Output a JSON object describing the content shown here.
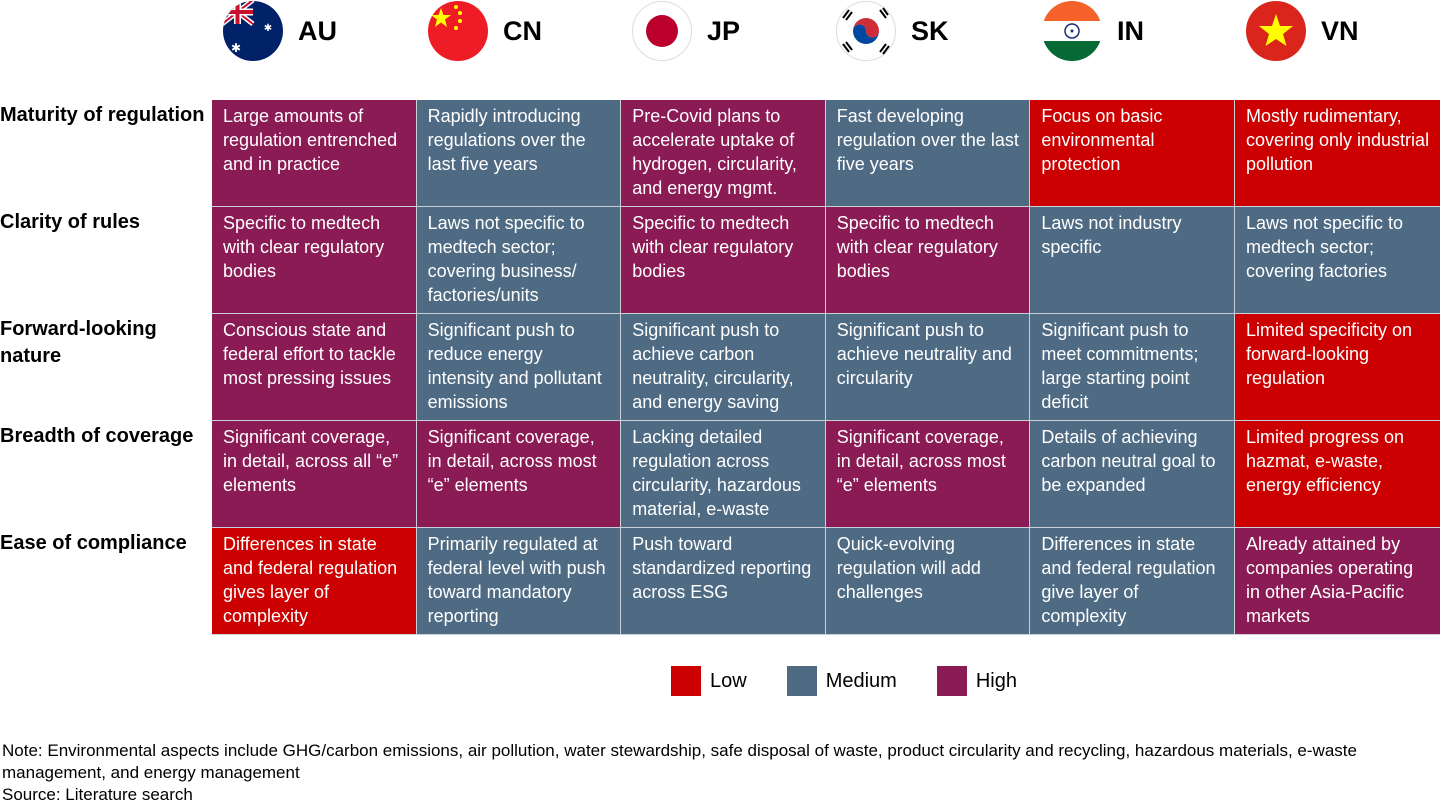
{
  "countries": [
    {
      "code": "AU",
      "flag": "australia-flag"
    },
    {
      "code": "CN",
      "flag": "china-flag"
    },
    {
      "code": "JP",
      "flag": "japan-flag"
    },
    {
      "code": "SK",
      "flag": "south-korea-flag"
    },
    {
      "code": "IN",
      "flag": "india-flag"
    },
    {
      "code": "VN",
      "flag": "vietnam-flag"
    }
  ],
  "colors": {
    "Low": "#cc0000",
    "Medium": "#4f6b84",
    "High": "#8b1b55"
  },
  "rows": [
    {
      "label": "Maturity of regulation",
      "cells": [
        {
          "level": "High",
          "text": "Large amounts of regulation entrenched and in practice"
        },
        {
          "level": "Medium",
          "text": "Rapidly introducing regulations over the last five years"
        },
        {
          "level": "High",
          "text": "Pre-Covid plans to accelerate uptake of hydrogen, circularity, and energy mgmt."
        },
        {
          "level": "Medium",
          "text": "Fast developing regulation over the last five years"
        },
        {
          "level": "Low",
          "text": "Focus on basic environmental protection"
        },
        {
          "level": "Low",
          "text": "Mostly rudimentary, covering only industrial pollution"
        }
      ]
    },
    {
      "label": "Clarity of rules",
      "cells": [
        {
          "level": "High",
          "text": "Specific to medtech with clear regulatory bodies"
        },
        {
          "level": "Medium",
          "text": "Laws not specific to medtech sector; covering business/ factories/units"
        },
        {
          "level": "High",
          "text": "Specific to medtech with clear regulatory bodies"
        },
        {
          "level": "High",
          "text": "Specific to medtech with clear regulatory bodies"
        },
        {
          "level": "Medium",
          "text": "Laws not industry specific"
        },
        {
          "level": "Medium",
          "text": "Laws not specific to medtech sector; covering factories"
        }
      ]
    },
    {
      "label": "Forward-looking nature",
      "cells": [
        {
          "level": "High",
          "text": "Conscious state and federal effort to tackle most pressing issues"
        },
        {
          "level": "Medium",
          "text": "Significant push to reduce energy intensity and pollutant emissions"
        },
        {
          "level": "Medium",
          "text": "Significant push to achieve carbon neutrality, circularity, and energy saving"
        },
        {
          "level": "Medium",
          "text": "Significant push to achieve neutrality and circularity"
        },
        {
          "level": "Medium",
          "text": "Significant push to meet commitments; large starting point deficit"
        },
        {
          "level": "Low",
          "text": "Limited specificity on forward-looking regulation"
        }
      ]
    },
    {
      "label": "Breadth of coverage",
      "cells": [
        {
          "level": "High",
          "text": "Significant coverage, in detail, across all “e” elements"
        },
        {
          "level": "High",
          "text": "Significant coverage, in detail, across most “e” elements"
        },
        {
          "level": "Medium",
          "text": "Lacking detailed regulation across circularity, hazardous material, e-waste"
        },
        {
          "level": "High",
          "text": "Significant coverage, in detail, across most “e” elements"
        },
        {
          "level": "Medium",
          "text": "Details of achieving carbon neutral goal to be expanded"
        },
        {
          "level": "Low",
          "text": "Limited progress on hazmat, e-waste, energy efficiency"
        }
      ]
    },
    {
      "label": "Ease of compliance",
      "cells": [
        {
          "level": "Low",
          "text": "Differences in state and federal regulation gives layer of complexity"
        },
        {
          "level": "Medium",
          "text": "Primarily regulated at federal level with push toward mandatory reporting"
        },
        {
          "level": "Medium",
          "text": "Push toward standardized reporting across ESG"
        },
        {
          "level": "Medium",
          "text": "Quick-evolving regulation will add challenges"
        },
        {
          "level": "Medium",
          "text": "Differences in state and federal regulation give layer of complexity"
        },
        {
          "level": "High",
          "text": "Already attained by companies operating in other Asia-Pacific markets"
        }
      ]
    }
  ],
  "legend": [
    "Low",
    "Medium",
    "High"
  ],
  "note": "Note: Environmental aspects include GHG/carbon emissions, air pollution, water stewardship, safe disposal of waste, product circularity and recycling, hazardous materials, e-waste management, and energy management",
  "source": "Source: Literature search"
}
